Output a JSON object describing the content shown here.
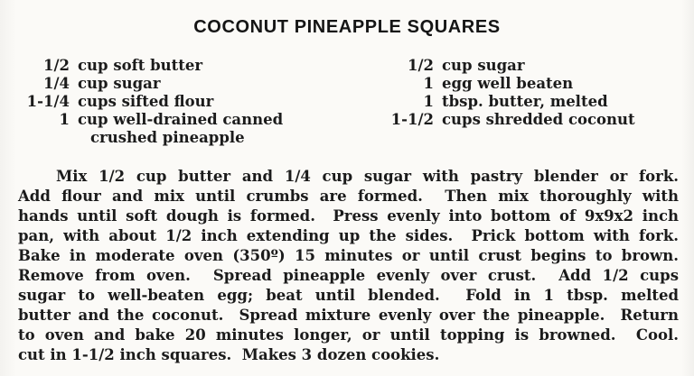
{
  "recipe": {
    "title": "COCONUT PINEAPPLE SQUARES",
    "ingredients_left": [
      {
        "qty": "1/2",
        "item": "cup soft butter"
      },
      {
        "qty": "1/4",
        "item": "cup sugar"
      },
      {
        "qty": "1-1/4",
        "item": "cups sifted flour"
      },
      {
        "qty": "1",
        "item": "cup well-drained canned"
      },
      {
        "qty": "",
        "item": "crushed pineapple"
      }
    ],
    "ingredients_right": [
      {
        "qty": "1/2",
        "item": "cup sugar"
      },
      {
        "qty": "1",
        "item": "egg well beaten"
      },
      {
        "qty": "1",
        "item": "tbsp. butter, melted"
      },
      {
        "qty": "1-1/2",
        "item": "cups shredded coconut"
      }
    ],
    "instructions_lines": [
      "Mix 1/2 cup butter and 1/4 cup sugar with pastry blender or fork.",
      "Add flour and mix until crumbs are formed.  Then mix thoroughly with",
      "hands until soft dough is formed.  Press evenly into bottom of 9x9x2 inch",
      "pan, with about 1/2 inch extending up the sides.  Prick bottom with fork.",
      "Bake in moderate oven (350º) 15 minutes or until crust begins to brown.",
      "Remove from oven.  Spread pineapple evenly over crust.  Add 1/2 cups",
      "sugar to well-beaten egg; beat until blended.  Fold in 1 tbsp. melted",
      "butter and the coconut.  Spread mixture evenly over the pineapple.  Return",
      "to oven and bake 20 minutes longer, or until topping is browned.  Cool.",
      "cut in 1-1/2 inch squares.  Makes 3 dozen cookies."
    ]
  }
}
